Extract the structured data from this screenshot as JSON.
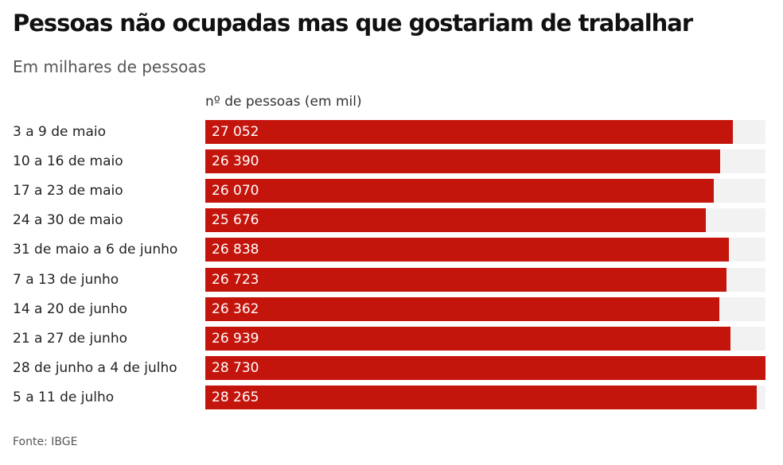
{
  "title": "Pessoas não ocupadas mas que gostariam de trabalhar",
  "subtitle": "Em milhares de pessoas",
  "source": "Fonte: IBGE",
  "colors": {
    "bar": "#c4150c",
    "track": "#f2f2f2"
  },
  "chart_data": {
    "type": "bar",
    "orientation": "horizontal",
    "column_header": "nº de pessoas (em mil)",
    "categories": [
      "3 a 9 de maio",
      "10 a 16 de maio",
      "17 a 23 de maio",
      "24 a 30 de maio",
      "31 de maio a 6 de junho",
      "7 a 13 de junho",
      "14 a 20 de junho",
      "21 a 27 de junho",
      "28 de junho a 4 de julho",
      "5 a 11 de julho"
    ],
    "values": [
      27052,
      26390,
      26070,
      25676,
      26838,
      26723,
      26362,
      26939,
      28730,
      28265
    ],
    "value_labels": [
      "27 052",
      "26 390",
      "26 070",
      "25 676",
      "26 838",
      "26 723",
      "26 362",
      "26 939",
      "28 730",
      "28 265"
    ],
    "xlim": [
      0,
      28730
    ],
    "grid": false,
    "legend": "none"
  }
}
